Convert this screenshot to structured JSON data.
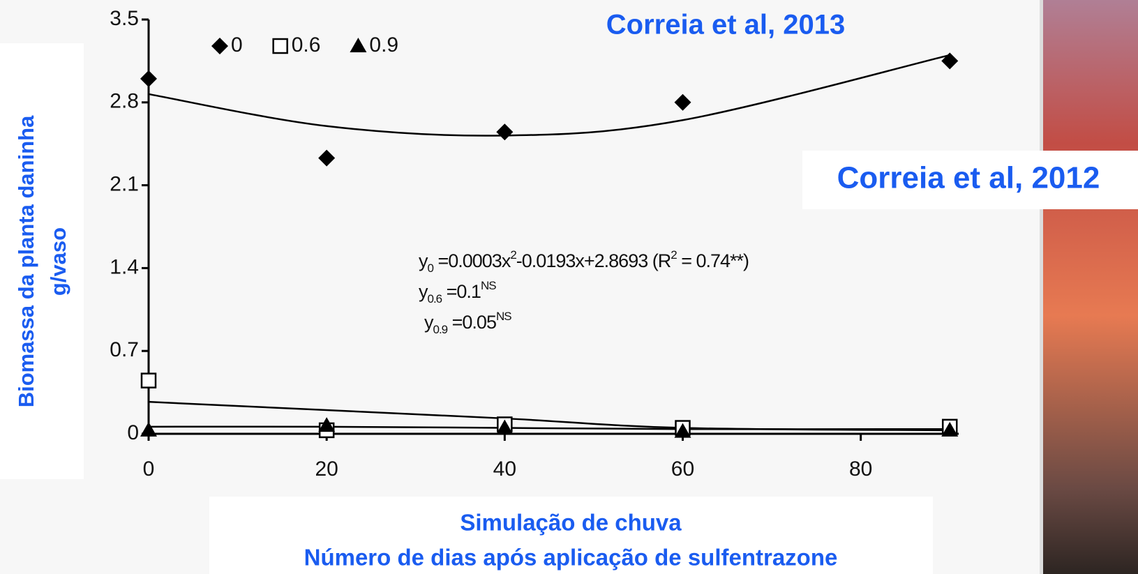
{
  "chart_data": {
    "type": "scatter",
    "title": "Correia et al, 2013",
    "subtitle": "Correia et al, 2012",
    "y_label": [
      "Biomassa da planta daninha",
      "g/vaso"
    ],
    "x_label": [
      "Simulação de chuva",
      "Número de dias após aplicação de sulfentrazone"
    ],
    "x": [
      0,
      20,
      40,
      60,
      90
    ],
    "series": [
      {
        "name": "0",
        "color": "#000000",
        "marker": "diamond",
        "values": [
          3.0,
          2.33,
          2.55,
          2.8,
          3.15
        ],
        "fit": [
          2.87,
          2.6,
          2.52,
          2.65,
          3.2
        ]
      },
      {
        "name": "0.6",
        "color": "#000000",
        "marker": "square",
        "values": [
          0.45,
          0.03,
          0.08,
          0.05,
          0.06
        ],
        "fit": [
          0.27,
          0.2,
          0.13,
          0.05,
          0.03
        ]
      },
      {
        "name": "0.9",
        "color": "#000000",
        "marker": "triangle",
        "values": [
          0.03,
          0.07,
          0.05,
          0.02,
          0.03
        ],
        "fit": [
          0.06,
          0.06,
          0.05,
          0.04,
          0.04
        ]
      }
    ],
    "equations": [
      [
        {
          "text": "y"
        },
        {
          "sub": "0"
        },
        {
          "text": " =0.0003x"
        },
        {
          "sup": "2"
        },
        {
          "text": "-0.0193x+2.8693 (R"
        },
        {
          "sup": "2"
        },
        {
          "text": " = 0.74**)"
        }
      ],
      [
        {
          "text": "y"
        },
        {
          "sub": "0.6"
        },
        {
          "text": " =0.1"
        },
        {
          "sup": "NS"
        }
      ],
      [
        {
          "text": "y"
        },
        {
          "sub": "0.9"
        },
        {
          "text": " =0.05"
        },
        {
          "sup": "NS"
        }
      ]
    ],
    "xlim": [
      0,
      91
    ],
    "xticks": [
      0,
      20,
      40,
      60,
      80
    ],
    "ylim": [
      0,
      3.5
    ],
    "yticks": [
      0,
      0.7,
      1.4,
      2.1,
      2.8,
      3.5
    ],
    "grid": false
  }
}
